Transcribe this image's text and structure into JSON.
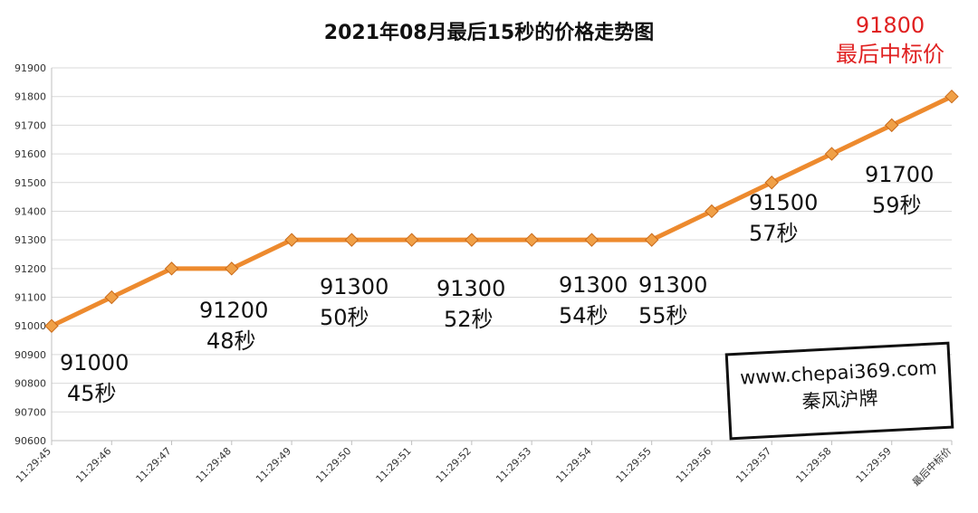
{
  "title": "2021年08月最后15秒的价格走势图",
  "final_callout": {
    "value": "91800",
    "label": "最后中标价"
  },
  "watermark": {
    "url": "www.chepai369.com",
    "name": "秦风沪牌"
  },
  "colors": {
    "line": "#ed8a2e",
    "marker": "#f0a047",
    "marker_stroke": "#c96a1a",
    "grid": "#d9d9d9",
    "callout": "#e02020"
  },
  "annotations": [
    {
      "value": "91000",
      "sec": "45秒"
    },
    {
      "value": "91200",
      "sec": "48秒"
    },
    {
      "value": "91300",
      "sec": "50秒"
    },
    {
      "value": "91300",
      "sec": "52秒"
    },
    {
      "value": "91300",
      "sec": "54秒"
    },
    {
      "value": "91300",
      "sec": "55秒"
    },
    {
      "value": "91500",
      "sec": "57秒"
    },
    {
      "value": "91700",
      "sec": "59秒"
    }
  ],
  "chart_data": {
    "type": "line",
    "title": "2021年08月最后15秒的价格走势图",
    "categories": [
      "11:29:45",
      "11:29:46",
      "11:29:47",
      "11:29:48",
      "11:29:49",
      "11:29:50",
      "11:29:51",
      "11:29:52",
      "11:29:53",
      "11:29:54",
      "11:29:55",
      "11:29:56",
      "11:29:57",
      "11:29:58",
      "11:29:59",
      "最后中标价"
    ],
    "series": [
      {
        "values": [
          91000,
          91100,
          91200,
          91200,
          91300,
          91300,
          91300,
          91300,
          91300,
          91300,
          91300,
          91400,
          91500,
          91600,
          91700,
          91800
        ]
      }
    ],
    "ylim": [
      90600,
      91900
    ],
    "yticks": [
      90600,
      90700,
      90800,
      90900,
      91000,
      91100,
      91200,
      91300,
      91400,
      91500,
      91600,
      91700,
      91800,
      91900
    ],
    "xlabel": "",
    "ylabel": "",
    "grid": true,
    "marker": "diamond"
  }
}
